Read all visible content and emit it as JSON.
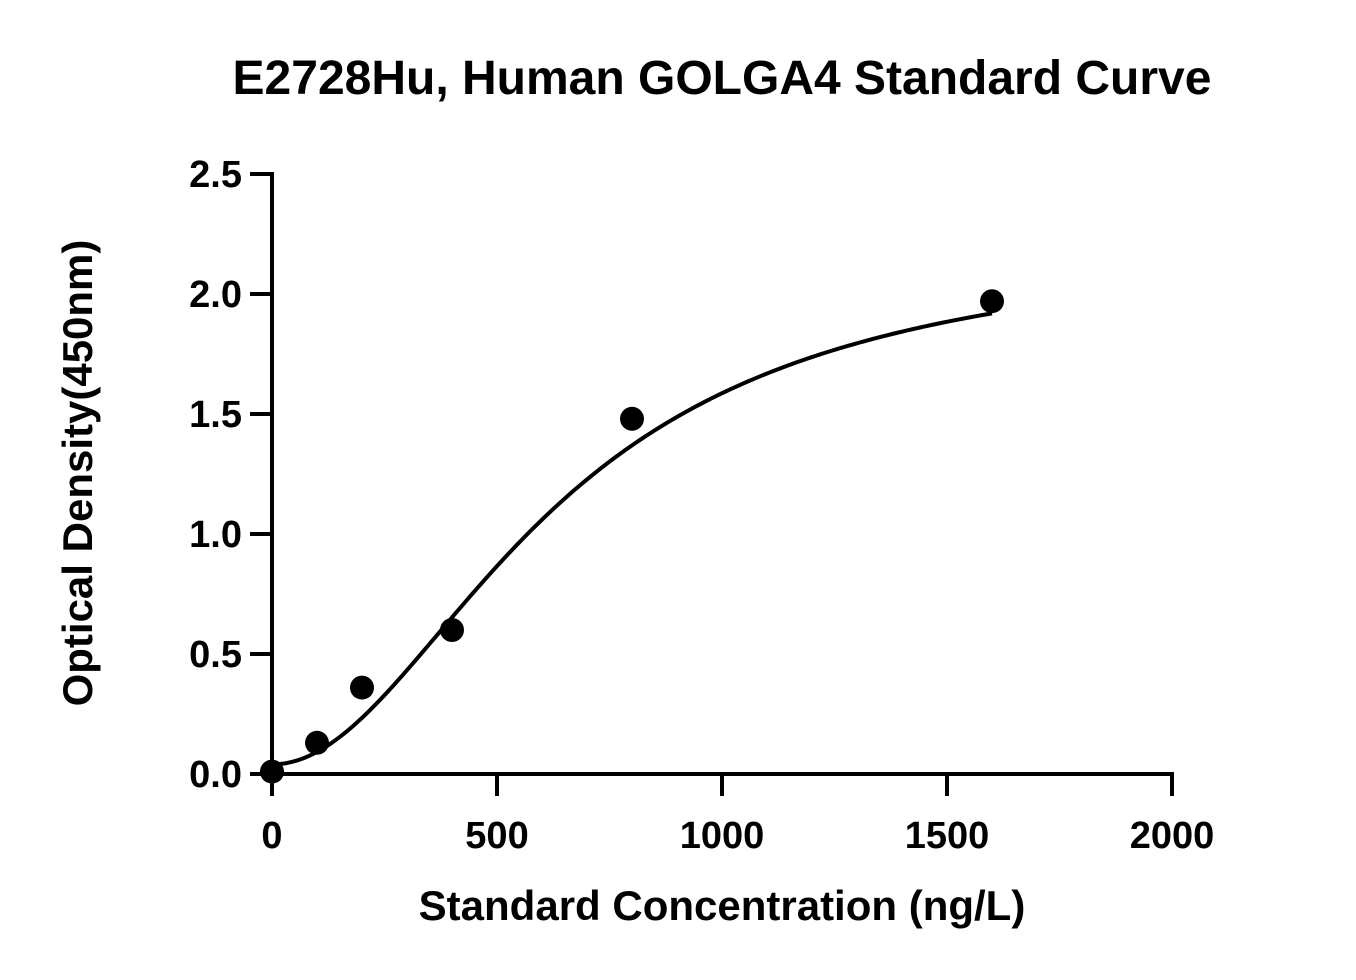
{
  "chart_data": {
    "type": "scatter",
    "title": "E2728Hu, Human GOLGA4 Standard Curve",
    "xlabel": "Standard Concentration (ng/L)",
    "ylabel": "Optical Density(450nm)",
    "xlim": [
      0,
      2000
    ],
    "ylim": [
      0,
      2.5
    ],
    "x_ticks": [
      "0",
      "500",
      "1000",
      "1500",
      "2000"
    ],
    "y_ticks": [
      "0.0",
      "0.5",
      "1.0",
      "1.5",
      "2.0",
      "2.5"
    ],
    "grid": false,
    "series": [
      {
        "points": [
          {
            "x": 0,
            "y": 0.01
          },
          {
            "x": 100,
            "y": 0.13
          },
          {
            "x": 200,
            "y": 0.36
          },
          {
            "x": 400,
            "y": 0.6
          },
          {
            "x": 800,
            "y": 1.48
          },
          {
            "x": 1600,
            "y": 1.97
          }
        ],
        "fit_curve": "sigmoidal",
        "color": "#000000"
      }
    ]
  }
}
